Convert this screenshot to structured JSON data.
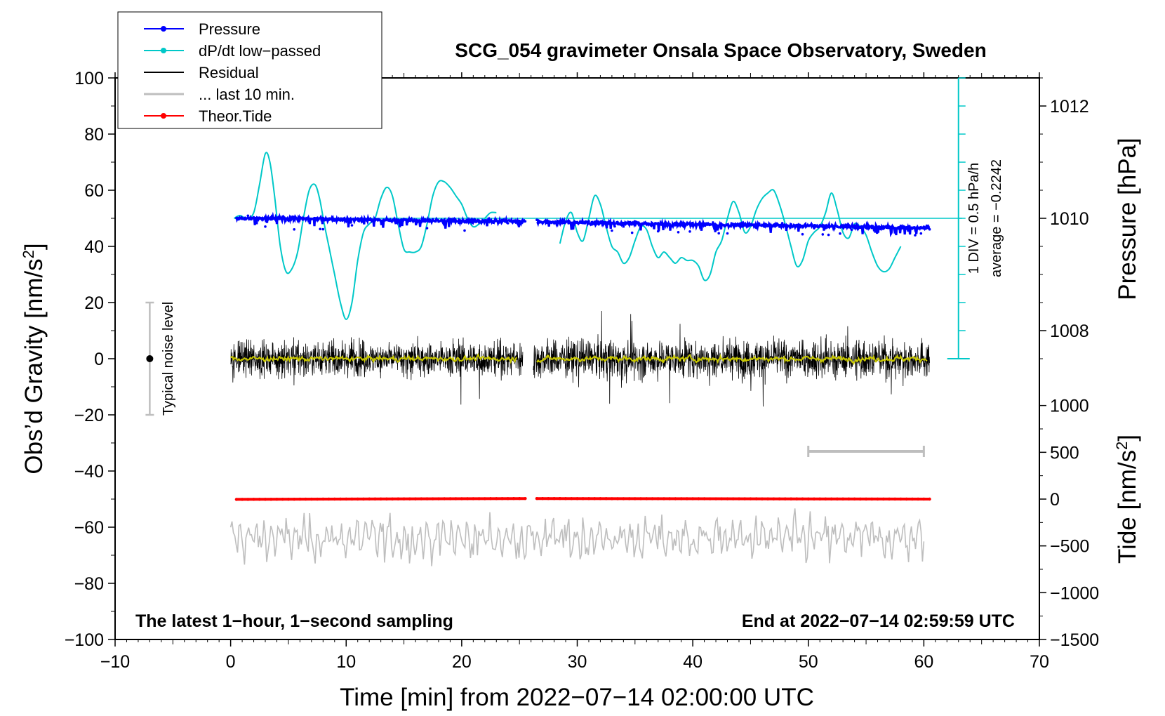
{
  "chart_data": {
    "type": "line",
    "title": "SCG_054 gravimeter Onsala Space Observatory, Sweden",
    "xlabel": "Time [min] from 2022−07−14 02:00:00 UTC",
    "ylabel_left": "Obs’d Gravity [nm/s",
    "ylabel_left_sup": "2",
    "ylabel_left_close": "]",
    "ylabel_right_pressure": "Pressure [hPa]",
    "ylabel_right_tide": "Tide [nm/s",
    "ylabel_right_tide_sup": "2",
    "ylabel_right_tide_close": "]",
    "xlim": [
      -10,
      70
    ],
    "ylim": [
      -100,
      100
    ],
    "x_ticks": [
      -10,
      0,
      10,
      20,
      30,
      40,
      50,
      60,
      70
    ],
    "x_tick_labels": [
      "−10",
      "0",
      "10",
      "20",
      "30",
      "40",
      "50",
      "60",
      "70"
    ],
    "y_ticks": [
      -100,
      -80,
      -60,
      -40,
      -20,
      0,
      20,
      40,
      60,
      80,
      100
    ],
    "y_tick_labels": [
      "−100",
      "−80",
      "−60",
      "−40",
      "−20",
      "0",
      "20",
      "40",
      "60",
      "80",
      "100"
    ],
    "pressure_ticks": [
      1008,
      1010,
      1012
    ],
    "pressure_tick_labels": [
      "1008",
      "1010",
      "1012"
    ],
    "pressure_axis": {
      "value_at_gravity_50": 1010,
      "hPa_per_20_nm": 1
    },
    "tide_ticks": [
      -1500,
      -1000,
      -500,
      0,
      500,
      1000
    ],
    "tide_tick_labels": [
      "−1500",
      "−1000",
      "−500",
      "0",
      "500",
      "1000"
    ],
    "tide_axis": {
      "value_at_gravity_minus_100": -1500,
      "value_at_gravity_minus_50": 0
    },
    "legend": {
      "position": "top-left",
      "entries": [
        {
          "label": "Pressure",
          "color": "#0000ff",
          "marker": true
        },
        {
          "label": "dP/dt low−passed",
          "color": "#00c8c8",
          "marker": true
        },
        {
          "label": "Residual",
          "color": "#000000",
          "marker": false
        },
        {
          "label": "... last 10 min.",
          "color": "#bebebe",
          "marker": false
        },
        {
          "label": "Theor.Tide",
          "color": "#ff0000",
          "marker": true
        }
      ]
    },
    "annotations": {
      "bottom_left": "The latest 1−hour, 1−second sampling",
      "bottom_right": "End at 2022−07−14 02:59:59 UTC",
      "noise_label": "Typical noise level",
      "div_label": "1 DIV = 0.5 hPa/h",
      "average_label": "average = −0.2242"
    },
    "noise_bar": {
      "x": -7,
      "center": 0,
      "half_range": 20
    },
    "last10_bar": {
      "x_start": 50,
      "x_end": 60,
      "y": -33
    },
    "dpdt_scale_bar": {
      "x": 63,
      "y_top": 100,
      "y_bottom": 0
    },
    "series": [
      {
        "name": "Pressure",
        "color": "#0000ff",
        "segments": [
          {
            "x": [
              0.5,
              5,
              10,
              15,
              20,
              25.5
            ],
            "y": [
              50.0,
              49.9,
              49.6,
              49.3,
              49.1,
              48.9
            ]
          },
          {
            "x": [
              26.5,
              30,
              35,
              40,
              45,
              50,
              55,
              60.5
            ],
            "y": [
              48.8,
              48.5,
              48.1,
              47.8,
              47.6,
              47.3,
              47.0,
              46.6
            ]
          }
        ]
      },
      {
        "name": "dP/dt low−passed",
        "color": "#00c8c8",
        "segments": [
          {
            "x": [
              0.3,
              0.8,
              1.4,
              2.0,
              2.5,
              3.0,
              3.4,
              3.8,
              4.3,
              4.8,
              5.3,
              5.8,
              6.3,
              6.8,
              7.3,
              7.7,
              8.1,
              8.5,
              9.0,
              9.5,
              10.0,
              10.5,
              11.0,
              11.5,
              12.0,
              12.5,
              13.0,
              13.5,
              14.0,
              14.5,
              15.0,
              15.5,
              16.0,
              16.5,
              17.0,
              17.5,
              18.0,
              18.5,
              19.0,
              19.5,
              20.0,
              20.5,
              21.0,
              21.5,
              22.0,
              22.5,
              23.0
            ],
            "y": [
              50,
              51,
              50,
              52,
              62,
              73,
              70,
              58,
              40,
              31,
              32,
              38,
              50,
              60,
              62,
              57,
              48,
              40,
              30,
              20,
              14,
              20,
              35,
              45,
              48,
              50,
              57,
              61,
              58,
              48,
              39,
              38,
              38,
              40,
              48,
              58,
              63,
              63,
              61,
              58,
              55,
              50,
              47,
              48,
              50,
              52,
              52
            ]
          },
          {
            "x": [
              28.5,
              29.0,
              29.5,
              30.0,
              30.5,
              31.0,
              31.5,
              32.0,
              32.5,
              33.0,
              33.5,
              34.0,
              34.5,
              35.0,
              35.5,
              36.0,
              36.5,
              37.0,
              37.5,
              38.0,
              38.5,
              39.0,
              39.5,
              40.0,
              40.5,
              41.0,
              41.5,
              42.0,
              42.5,
              43.0,
              43.5,
              44.0,
              44.5,
              45.0,
              45.5,
              46.0,
              46.5,
              47.0,
              47.5,
              48.0,
              48.5,
              49.0,
              49.5,
              50.0,
              50.5,
              51.0,
              51.5,
              52.0,
              52.5,
              53.0,
              53.5,
              54.0,
              54.5,
              55.0,
              55.5,
              56.0,
              56.5,
              57.0,
              57.5,
              58.0
            ],
            "y": [
              41,
              49,
              52,
              45,
              42,
              50,
              58,
              55,
              47,
              40,
              38,
              34,
              36,
              42,
              47,
              46,
              40,
              36,
              38,
              36,
              34,
              36,
              35,
              35,
              33,
              28,
              30,
              38,
              42,
              50,
              56,
              52,
              45,
              47,
              53,
              57,
              59,
              60,
              55,
              48,
              40,
              33,
              35,
              42,
              45,
              47,
              52,
              59,
              53,
              45,
              43,
              48,
              47,
              44,
              38,
              33,
              31,
              32,
              36,
              40
            ]
          }
        ]
      },
      {
        "name": "Residual",
        "color": "#000000",
        "segments": [
          {
            "x_start": 0,
            "x_end": 25.3,
            "std": 4.2
          },
          {
            "x_start": 26.2,
            "x_end": 60.5,
            "std": 4.6
          }
        ]
      },
      {
        "name": "Residual smoothed",
        "color": "#c8c800",
        "segments": [
          {
            "x_start": 0,
            "x_end": 24.8,
            "amplitude": 1.2
          },
          {
            "x_start": 26.5,
            "x_end": 60.3,
            "amplitude": 1.3
          }
        ]
      },
      {
        "name": "... last 10 min.",
        "color": "#bebebe",
        "segments": [
          {
            "x_start": 0,
            "x_end": 60,
            "center": -64,
            "amplitude": 6,
            "range": [
              -77,
              -52
            ]
          }
        ]
      },
      {
        "name": "Theor.Tide",
        "color": "#ff0000",
        "segments": [
          {
            "x": [
              0.5,
              25.5
            ],
            "y": [
              -50.1,
              -49.8
            ]
          },
          {
            "x": [
              26.5,
              60.5
            ],
            "y": [
              -49.8,
              -50.0
            ]
          }
        ]
      }
    ]
  }
}
